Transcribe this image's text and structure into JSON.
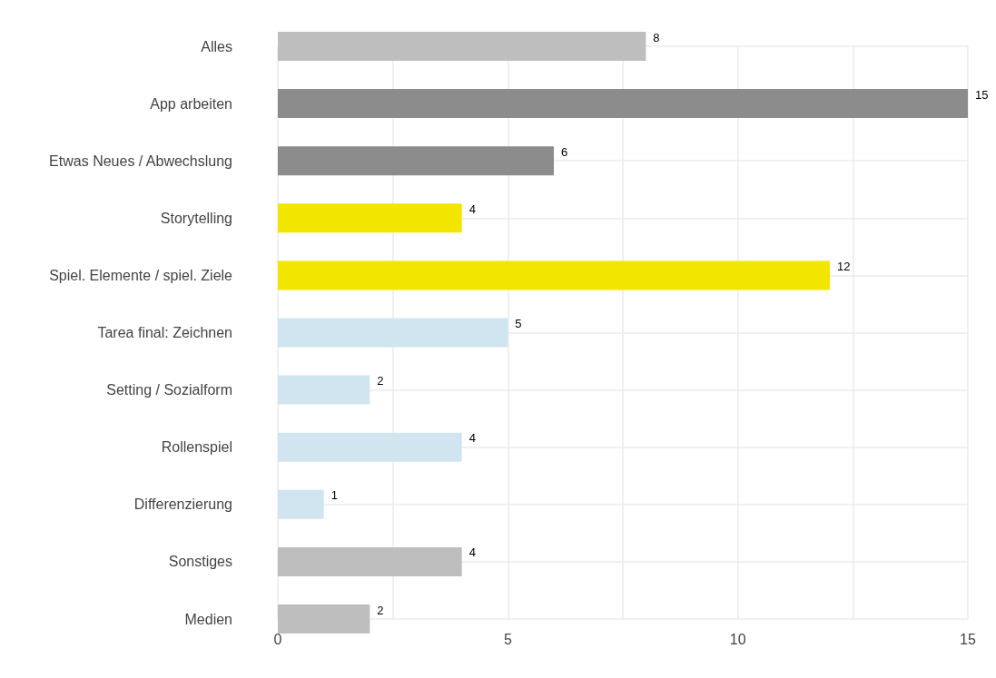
{
  "chart_data": {
    "type": "bar",
    "orientation": "horizontal",
    "categories": [
      "Alles",
      "App arbeiten",
      "Etwas Neues / Abwechslung",
      "Storytelling",
      "Spiel. Elemente / spiel. Ziele",
      "Tarea final: Zeichnen",
      "Setting / Sozialform",
      "Rollenspiel",
      "Differenzierung",
      "Sonstiges",
      "Medien"
    ],
    "values": [
      8,
      15,
      6,
      4,
      12,
      5,
      2,
      4,
      1,
      4,
      2
    ],
    "colors": [
      "#bebebe",
      "#8c8c8c",
      "#8c8c8c",
      "#f2e600",
      "#f2e600",
      "#d1e5f0",
      "#d1e5f0",
      "#d1e5f0",
      "#d1e5f0",
      "#bebebe",
      "#bebebe"
    ],
    "xlim": [
      0,
      15
    ],
    "xticks": [
      0,
      {
        "value": 2.5,
        "label": null
      },
      5,
      {
        "value": 7.5,
        "label": null
      },
      10,
      {
        "value": 12.5,
        "label": null
      },
      15
    ],
    "grid": true,
    "data_labels": true
  }
}
